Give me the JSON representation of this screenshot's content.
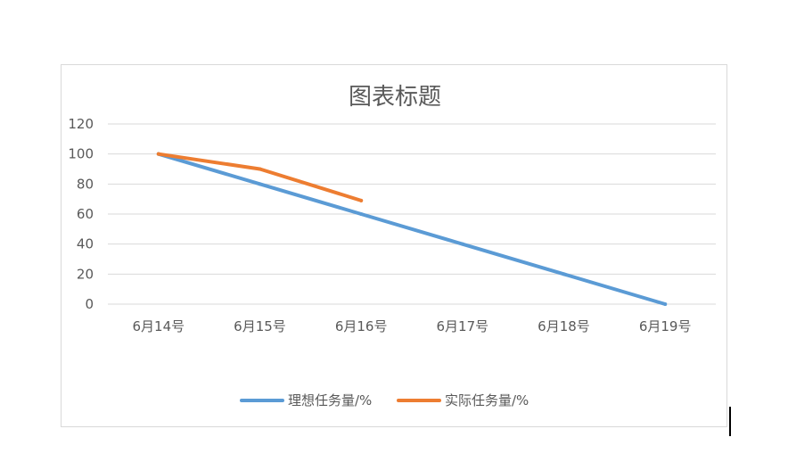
{
  "chart_data": {
    "type": "line",
    "title": "图表标题",
    "xlabel": "",
    "ylabel": "",
    "categories": [
      "6月14号",
      "6月15号",
      "6月16号",
      "6月17号",
      "6月18号",
      "6月19号"
    ],
    "ylim": [
      0,
      120
    ],
    "yticks": [
      0,
      20,
      40,
      60,
      80,
      100,
      120
    ],
    "grid": true,
    "legend_position": "bottom",
    "series": [
      {
        "name": "理想任务量/%",
        "values": [
          100,
          80,
          60,
          40,
          20,
          0
        ],
        "color": "#5b9bd5"
      },
      {
        "name": "实际任务量/%",
        "values": [
          100,
          90,
          69,
          null,
          null,
          null
        ],
        "color": "#ed7d31"
      }
    ]
  },
  "colors": {
    "gridline": "#d9d9d9",
    "text": "#595959",
    "frame": "#d9d9d9"
  }
}
